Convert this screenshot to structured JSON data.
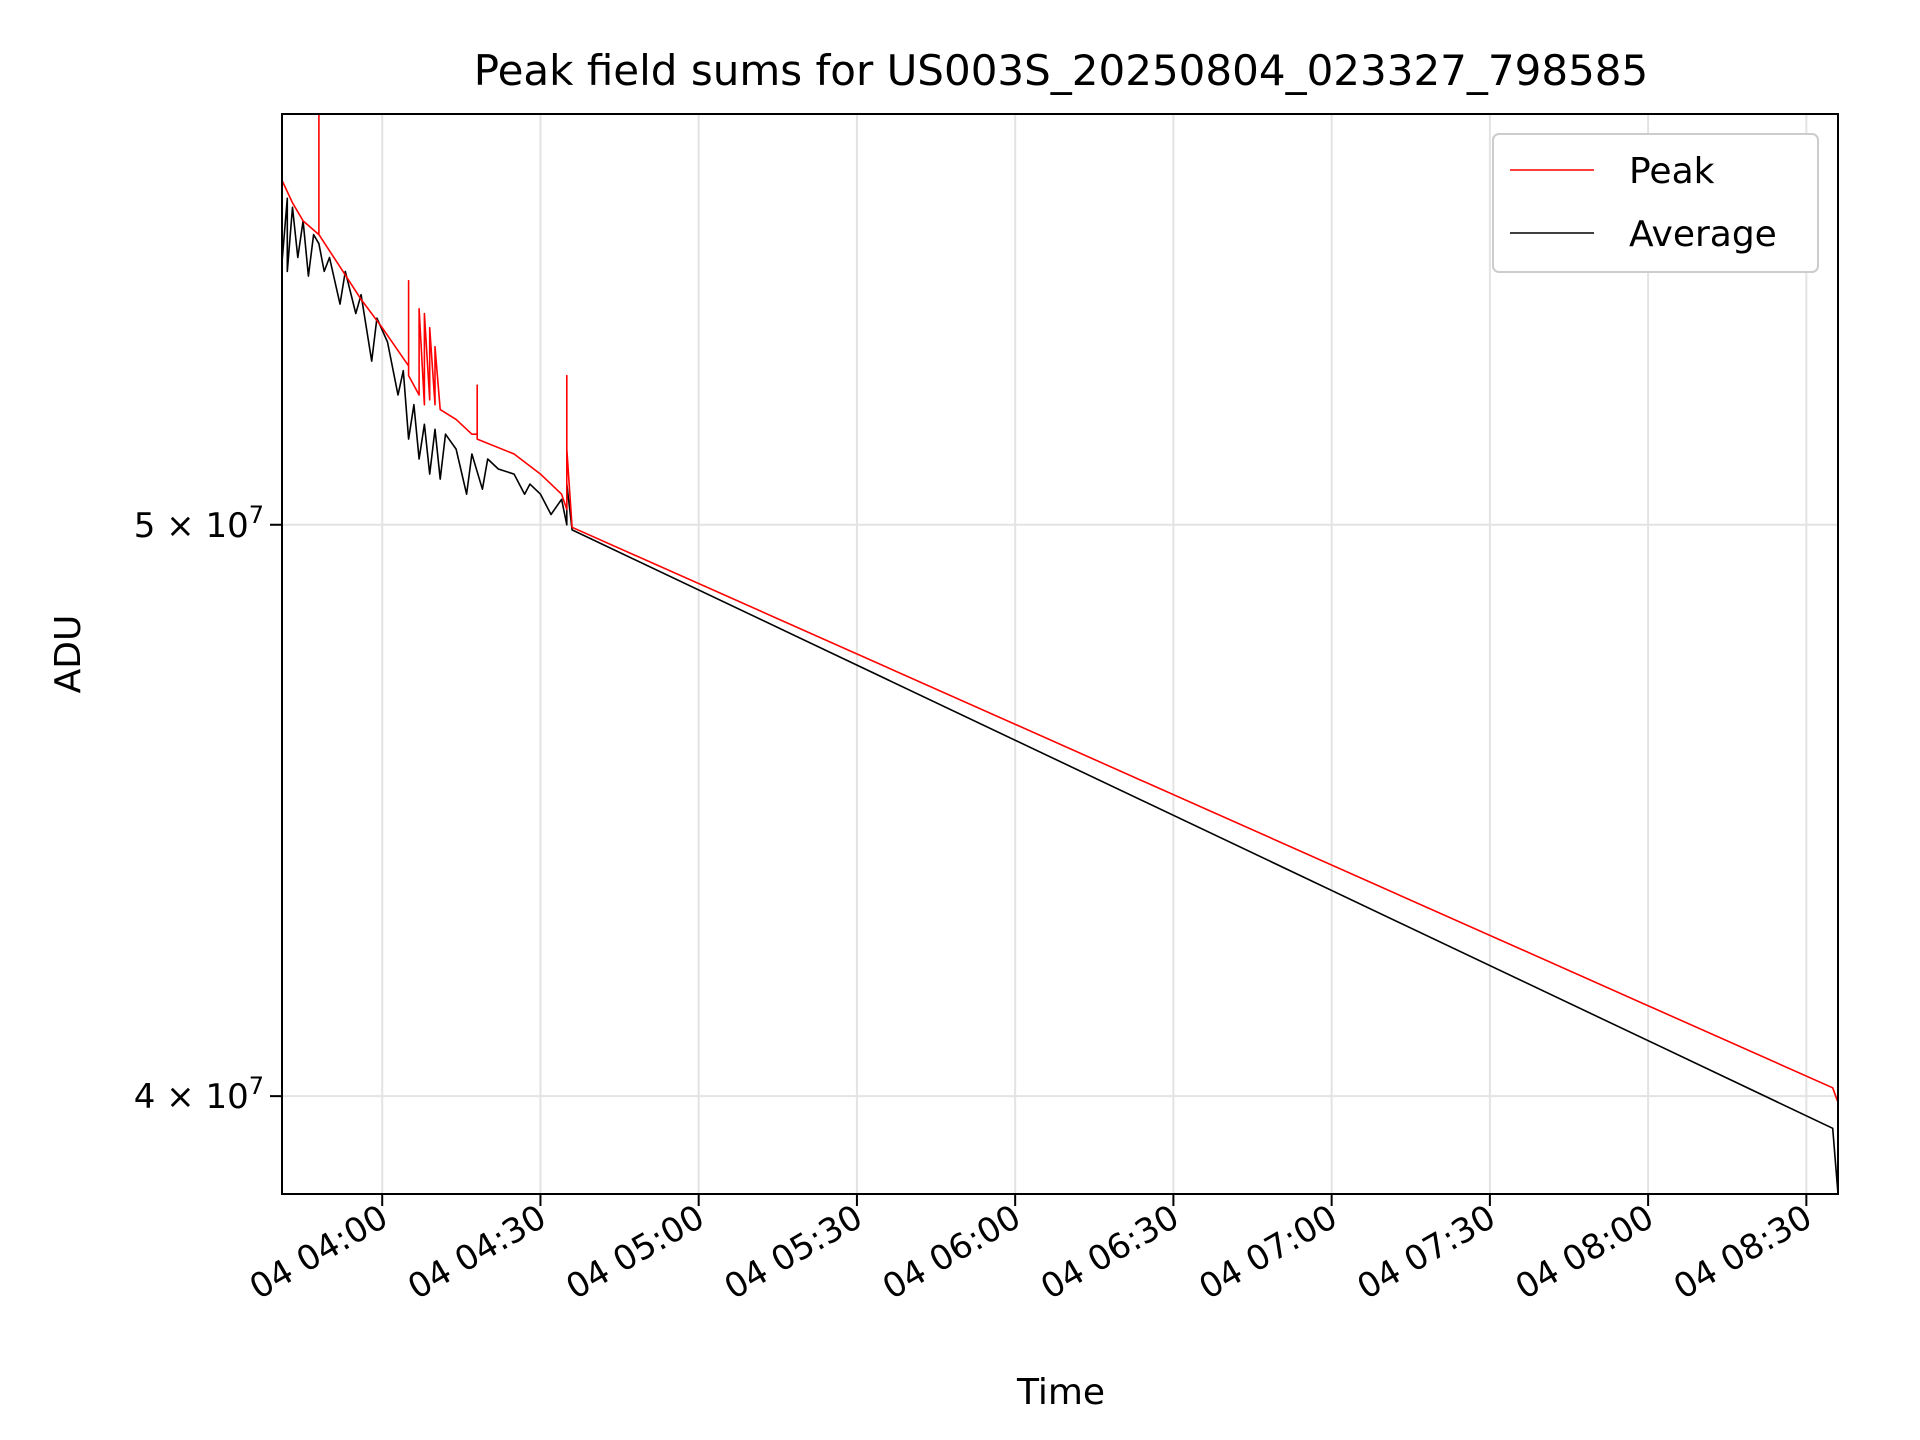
{
  "chart_data": {
    "type": "line",
    "title": "Peak field sums for US003S_20250804_023327_798585",
    "xlabel": "Time",
    "ylabel": "ADU",
    "y_scale": "log",
    "ylim": [
      38500000,
      58700000
    ],
    "xlim": [
      "2025-08-04 03:41",
      "2025-08-04 08:36"
    ],
    "grid": true,
    "legend_position": "top-right",
    "x_ticks": [
      {
        "t": "2025-08-04 04:00",
        "label": "04 04:00"
      },
      {
        "t": "2025-08-04 04:30",
        "label": "04 04:30"
      },
      {
        "t": "2025-08-04 05:00",
        "label": "04 05:00"
      },
      {
        "t": "2025-08-04 05:30",
        "label": "04 05:30"
      },
      {
        "t": "2025-08-04 06:00",
        "label": "04 06:00"
      },
      {
        "t": "2025-08-04 06:30",
        "label": "04 06:30"
      },
      {
        "t": "2025-08-04 07:00",
        "label": "04 07:00"
      },
      {
        "t": "2025-08-04 07:30",
        "label": "04 07:30"
      },
      {
        "t": "2025-08-04 08:00",
        "label": "04 08:00"
      },
      {
        "t": "2025-08-04 08:30",
        "label": "04 08:30"
      }
    ],
    "y_ticks": [
      {
        "value": 50000000,
        "mantissa": "5",
        "base": "10",
        "exponent": "7"
      },
      {
        "value": 40000000,
        "mantissa": "4",
        "base": "10",
        "exponent": "7"
      }
    ],
    "series": [
      {
        "name": "Peak",
        "color": "#ff0000",
        "points": [
          [
            "2025-08-04 03:41",
            57200000
          ],
          [
            "2025-08-04 03:43",
            56700000
          ],
          [
            "2025-08-04 03:45",
            56300000
          ],
          [
            "2025-08-04 03:48",
            56000000
          ],
          [
            "2025-08-04 03:48",
            58700000
          ],
          [
            "2025-08-04 03:48",
            56000000
          ],
          [
            "2025-08-04 03:52",
            55300000
          ],
          [
            "2025-08-04 03:56",
            54600000
          ],
          [
            "2025-08-04 04:00",
            54000000
          ],
          [
            "2025-08-04 04:05",
            53200000
          ],
          [
            "2025-08-04 04:05",
            55000000
          ],
          [
            "2025-08-04 04:05",
            53000000
          ],
          [
            "2025-08-04 04:07",
            52600000
          ],
          [
            "2025-08-04 04:07",
            54400000
          ],
          [
            "2025-08-04 04:08",
            52400000
          ],
          [
            "2025-08-04 04:08",
            54300000
          ],
          [
            "2025-08-04 04:09",
            52500000
          ],
          [
            "2025-08-04 04:09",
            54000000
          ],
          [
            "2025-08-04 04:10",
            52400000
          ],
          [
            "2025-08-04 04:10",
            53600000
          ],
          [
            "2025-08-04 04:11",
            52300000
          ],
          [
            "2025-08-04 04:14",
            52100000
          ],
          [
            "2025-08-04 04:17",
            51800000
          ],
          [
            "2025-08-04 04:18",
            51800000
          ],
          [
            "2025-08-04 04:18",
            52800000
          ],
          [
            "2025-08-04 04:18",
            51700000
          ],
          [
            "2025-08-04 04:25",
            51400000
          ],
          [
            "2025-08-04 04:30",
            51000000
          ],
          [
            "2025-08-04 04:34",
            50600000
          ],
          [
            "2025-08-04 04:35",
            50300000
          ],
          [
            "2025-08-04 04:35",
            53000000
          ],
          [
            "2025-08-04 04:35",
            50500000
          ],
          [
            "2025-08-04 04:35",
            51500000
          ],
          [
            "2025-08-04 04:36",
            49950000
          ],
          [
            "2025-08-04 08:35",
            40130000
          ],
          [
            "2025-08-04 08:36",
            39900000
          ]
        ]
      },
      {
        "name": "Average",
        "color": "#000000",
        "points": [
          [
            "2025-08-04 03:41",
            56900000
          ],
          [
            "2025-08-04 03:41",
            55400000
          ],
          [
            "2025-08-04 03:42",
            56800000
          ],
          [
            "2025-08-04 03:42",
            55200000
          ],
          [
            "2025-08-04 03:43",
            56600000
          ],
          [
            "2025-08-04 03:44",
            55500000
          ],
          [
            "2025-08-04 03:45",
            56300000
          ],
          [
            "2025-08-04 03:46",
            55100000
          ],
          [
            "2025-08-04 03:47",
            56000000
          ],
          [
            "2025-08-04 03:48",
            55800000
          ],
          [
            "2025-08-04 03:49",
            55200000
          ],
          [
            "2025-08-04 03:50",
            55500000
          ],
          [
            "2025-08-04 03:52",
            54500000
          ],
          [
            "2025-08-04 03:53",
            55200000
          ],
          [
            "2025-08-04 03:55",
            54300000
          ],
          [
            "2025-08-04 03:56",
            54700000
          ],
          [
            "2025-08-04 03:58",
            53300000
          ],
          [
            "2025-08-04 03:59",
            54200000
          ],
          [
            "2025-08-04 04:01",
            53700000
          ],
          [
            "2025-08-04 04:03",
            52600000
          ],
          [
            "2025-08-04 04:04",
            53100000
          ],
          [
            "2025-08-04 04:05",
            51700000
          ],
          [
            "2025-08-04 04:06",
            52400000
          ],
          [
            "2025-08-04 04:07",
            51300000
          ],
          [
            "2025-08-04 04:08",
            52000000
          ],
          [
            "2025-08-04 04:09",
            51000000
          ],
          [
            "2025-08-04 04:10",
            51900000
          ],
          [
            "2025-08-04 04:11",
            50900000
          ],
          [
            "2025-08-04 04:12",
            51800000
          ],
          [
            "2025-08-04 04:14",
            51500000
          ],
          [
            "2025-08-04 04:16",
            50600000
          ],
          [
            "2025-08-04 04:17",
            51400000
          ],
          [
            "2025-08-04 04:19",
            50700000
          ],
          [
            "2025-08-04 04:20",
            51300000
          ],
          [
            "2025-08-04 04:22",
            51100000
          ],
          [
            "2025-08-04 04:25",
            51000000
          ],
          [
            "2025-08-04 04:27",
            50600000
          ],
          [
            "2025-08-04 04:28",
            50800000
          ],
          [
            "2025-08-04 04:30",
            50600000
          ],
          [
            "2025-08-04 04:32",
            50200000
          ],
          [
            "2025-08-04 04:34",
            50500000
          ],
          [
            "2025-08-04 04:35",
            50000000
          ],
          [
            "2025-08-04 04:35",
            50800000
          ],
          [
            "2025-08-04 04:36",
            49900000
          ],
          [
            "2025-08-04 08:35",
            39500000
          ],
          [
            "2025-08-04 08:36",
            38500000
          ]
        ]
      }
    ]
  }
}
